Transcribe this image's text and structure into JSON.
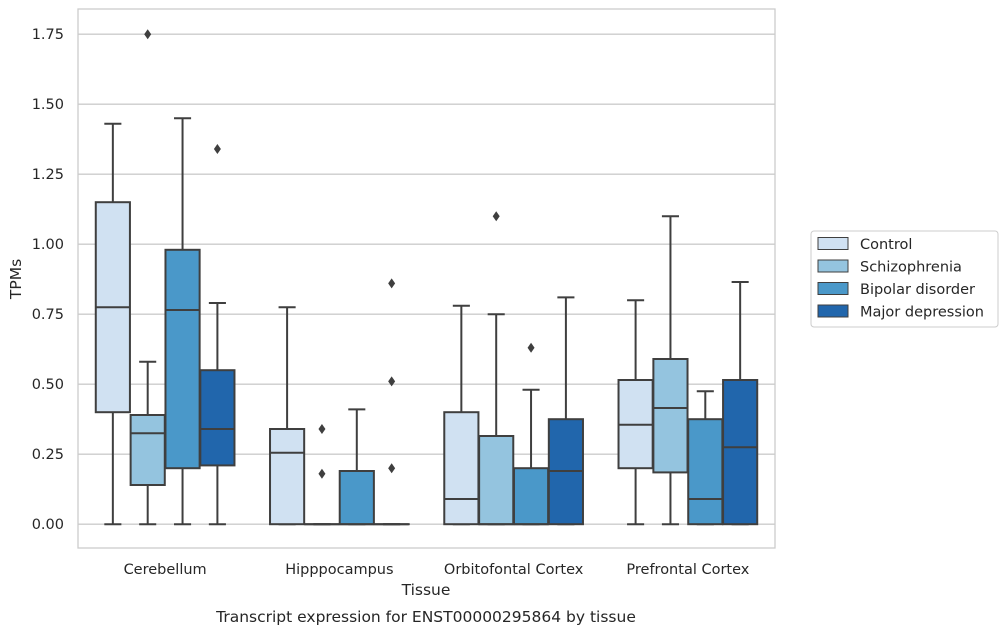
{
  "caption": "Transcript expression for ENST00000295864 by tissue",
  "chart_data": {
    "type": "box",
    "title": "",
    "xlabel": "Tissue",
    "ylabel": "TPMs",
    "categories": [
      "Cerebellum",
      "Hipppocampus",
      "Orbitofontal Cortex",
      "Prefrontal Cortex"
    ],
    "ylim": [
      -0.085,
      1.84
    ],
    "yticks": [
      0.0,
      0.25,
      0.5,
      0.75,
      1.0,
      1.25,
      1.5,
      1.75
    ],
    "ytick_labels": [
      "0.00",
      "0.25",
      "0.50",
      "0.75",
      "1.00",
      "1.25",
      "1.50",
      "1.75"
    ],
    "grid": "horizontal",
    "legend_position": "right",
    "series": [
      {
        "name": "Control",
        "color": "#d0e1f2",
        "boxes": [
          {
            "whisker_low": 0.0,
            "q1": 0.4,
            "median": 0.775,
            "q3": 1.15,
            "whisker_high": 1.43,
            "outliers": []
          },
          {
            "whisker_low": 0.0,
            "q1": 0.0,
            "median": 0.255,
            "q3": 0.34,
            "whisker_high": 0.775,
            "outliers": []
          },
          {
            "whisker_low": 0.0,
            "q1": 0.0,
            "median": 0.09,
            "q3": 0.4,
            "whisker_high": 0.78,
            "outliers": []
          },
          {
            "whisker_low": 0.0,
            "q1": 0.2,
            "median": 0.355,
            "q3": 0.515,
            "whisker_high": 0.8,
            "outliers": []
          }
        ]
      },
      {
        "name": "Schizophrenia",
        "color": "#94c4df",
        "boxes": [
          {
            "whisker_low": 0.0,
            "q1": 0.14,
            "median": 0.325,
            "q3": 0.39,
            "whisker_high": 0.58,
            "outliers": [
              1.75
            ]
          },
          {
            "whisker_low": 0.0,
            "q1": 0.0,
            "median": 0.0,
            "q3": 0.0,
            "whisker_high": 0.0,
            "outliers": [
              0.34,
              0.18
            ]
          },
          {
            "whisker_low": 0.0,
            "q1": 0.0,
            "median": 0.0,
            "q3": 0.315,
            "whisker_high": 0.75,
            "outliers": [
              1.1
            ]
          },
          {
            "whisker_low": 0.0,
            "q1": 0.185,
            "median": 0.415,
            "q3": 0.59,
            "whisker_high": 1.1,
            "outliers": []
          }
        ]
      },
      {
        "name": "Bipolar disorder",
        "color": "#4a98c9",
        "boxes": [
          {
            "whisker_low": 0.0,
            "q1": 0.2,
            "median": 0.765,
            "q3": 0.98,
            "whisker_high": 1.45,
            "outliers": []
          },
          {
            "whisker_low": 0.0,
            "q1": 0.0,
            "median": 0.0,
            "q3": 0.19,
            "whisker_high": 0.41,
            "outliers": []
          },
          {
            "whisker_low": 0.0,
            "q1": 0.0,
            "median": 0.0,
            "q3": 0.2,
            "whisker_high": 0.48,
            "outliers": [
              0.63
            ]
          },
          {
            "whisker_low": 0.0,
            "q1": 0.0,
            "median": 0.09,
            "q3": 0.375,
            "whisker_high": 0.475,
            "outliers": []
          }
        ]
      },
      {
        "name": "Major depression",
        "color": "#2166ac",
        "boxes": [
          {
            "whisker_low": 0.0,
            "q1": 0.21,
            "median": 0.34,
            "q3": 0.55,
            "whisker_high": 0.79,
            "outliers": [
              1.34
            ]
          },
          {
            "whisker_low": 0.0,
            "q1": 0.0,
            "median": 0.0,
            "q3": 0.0,
            "whisker_high": 0.0,
            "outliers": [
              0.86,
              0.51,
              0.2
            ]
          },
          {
            "whisker_low": 0.0,
            "q1": 0.0,
            "median": 0.19,
            "q3": 0.375,
            "whisker_high": 0.81,
            "outliers": []
          },
          {
            "whisker_low": 0.0,
            "q1": 0.0,
            "median": 0.275,
            "q3": 0.515,
            "whisker_high": 0.865,
            "outliers": []
          }
        ]
      }
    ]
  }
}
